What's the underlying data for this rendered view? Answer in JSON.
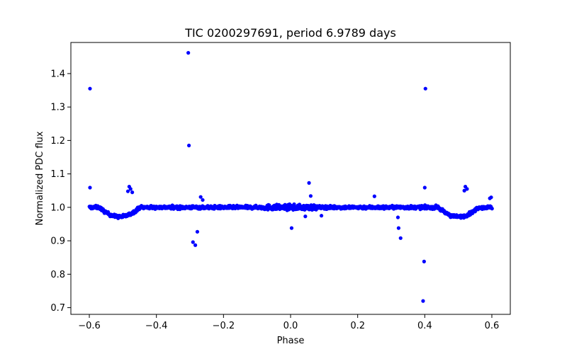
{
  "chart_data": {
    "type": "scatter",
    "title": "TIC 0200297691, period 6.9789 days",
    "xlabel": "Phase",
    "ylabel": "Normalized PDC flux",
    "xlim": [
      -0.655,
      0.655
    ],
    "ylim": [
      0.68,
      1.493
    ],
    "xticks": [
      -0.6,
      -0.4,
      -0.2,
      0.0,
      0.2,
      0.4,
      0.6
    ],
    "xtick_labels": [
      "−0.6",
      "−0.4",
      "−0.2",
      "0.0",
      "0.2",
      "0.4",
      "0.6"
    ],
    "yticks": [
      0.7,
      0.8,
      0.9,
      1.0,
      1.1,
      1.2,
      1.3,
      1.4
    ],
    "ytick_labels": [
      "0.7",
      "0.8",
      "0.9",
      "1.0",
      "1.1",
      "1.2",
      "1.3",
      "1.4"
    ],
    "grid": false,
    "marker_color": "#0000ff",
    "baseline": {
      "description": "dense band of points across full phase range",
      "x_range": [
        -0.6,
        0.6
      ],
      "dips": [
        {
          "center": -0.51,
          "halfwidth": 0.06,
          "depth": 0.028
        },
        {
          "center": 0.5,
          "halfwidth": 0.06,
          "depth": 0.028
        }
      ]
    },
    "outliers": [
      {
        "x": -0.598,
        "y": 1.355
      },
      {
        "x": -0.598,
        "y": 1.059
      },
      {
        "x": -0.481,
        "y": 1.062
      },
      {
        "x": -0.477,
        "y": 1.055
      },
      {
        "x": -0.485,
        "y": 1.048
      },
      {
        "x": -0.472,
        "y": 1.045
      },
      {
        "x": -0.305,
        "y": 1.462
      },
      {
        "x": -0.303,
        "y": 1.185
      },
      {
        "x": -0.291,
        "y": 0.896
      },
      {
        "x": -0.284,
        "y": 0.887
      },
      {
        "x": -0.278,
        "y": 0.927
      },
      {
        "x": -0.268,
        "y": 1.031
      },
      {
        "x": -0.262,
        "y": 1.022
      },
      {
        "x": 0.003,
        "y": 0.938
      },
      {
        "x": 0.055,
        "y": 1.073
      },
      {
        "x": 0.06,
        "y": 1.034
      },
      {
        "x": 0.044,
        "y": 0.973
      },
      {
        "x": 0.092,
        "y": 0.975
      },
      {
        "x": 0.25,
        "y": 1.033
      },
      {
        "x": 0.32,
        "y": 0.97
      },
      {
        "x": 0.322,
        "y": 0.938
      },
      {
        "x": 0.328,
        "y": 0.908
      },
      {
        "x": 0.395,
        "y": 0.72
      },
      {
        "x": 0.398,
        "y": 0.838
      },
      {
        "x": 0.4,
        "y": 1.059
      },
      {
        "x": 0.402,
        "y": 1.355
      },
      {
        "x": 0.521,
        "y": 1.062
      },
      {
        "x": 0.518,
        "y": 1.05
      },
      {
        "x": 0.526,
        "y": 1.055
      },
      {
        "x": 0.594,
        "y": 1.027
      },
      {
        "x": 0.598,
        "y": 1.03
      }
    ]
  }
}
